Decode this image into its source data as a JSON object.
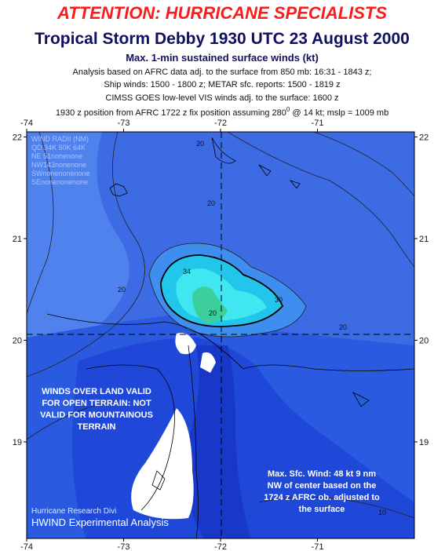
{
  "header": {
    "alert": "ATTENTION: HURRICANE SPECIALISTS",
    "title": "Tropical Storm Debby 1930 UTC 23 August 2000",
    "subtitle": "Max. 1-min sustained surface winds (kt)",
    "lines": [
      "Analysis based on AFRC data adj. to the surface from 850 mb: 16:31 - 1843 z;",
      "Ship winds: 1500 - 1800 z; METAR sfc. reports: 1500 - 1819 z",
      "CIMSS GOES low-level VIS winds adj. to the surface: 1600 z"
    ],
    "position": {
      "text": "1930 z position from AFRC 1722 z fix position assuming 280",
      "superscript": "0",
      "rest": " @ 14 kt; mslp = 1009 mb"
    }
  },
  "map": {
    "lon_ticks": [
      -74,
      -73,
      -72,
      -71
    ],
    "lat_ticks": [
      22,
      21,
      20,
      19
    ],
    "lonlim": [
      -74,
      -70
    ],
    "latlim": [
      18.05,
      22.05
    ]
  },
  "contour_labels": [
    "20",
    "20",
    "20",
    "34",
    "30",
    "20",
    "20",
    "10"
  ],
  "wind_radii": [
    "WIND RADII (NM)",
    "QD 34K 50K 64K",
    "NE  51nonenone",
    "NW143nonenone",
    "SWnonenonenone",
    "SEnonenonenone"
  ],
  "land_note": [
    "WINDS OVER LAND VALID",
    "FOR OPEN TERRAIN: NOT",
    "VALID FOR MOUNTAINOUS",
    "TERRAIN"
  ],
  "max_wind_note": [
    "Max. Sfc. Wind: 48 kt 9 nm",
    "NW of center based on the",
    "1724 z AFRC ob. adjusted to",
    "the surface"
  ],
  "credit": [
    "Hurricane Research Divi",
    "HWIND Experimental Analysis"
  ]
}
